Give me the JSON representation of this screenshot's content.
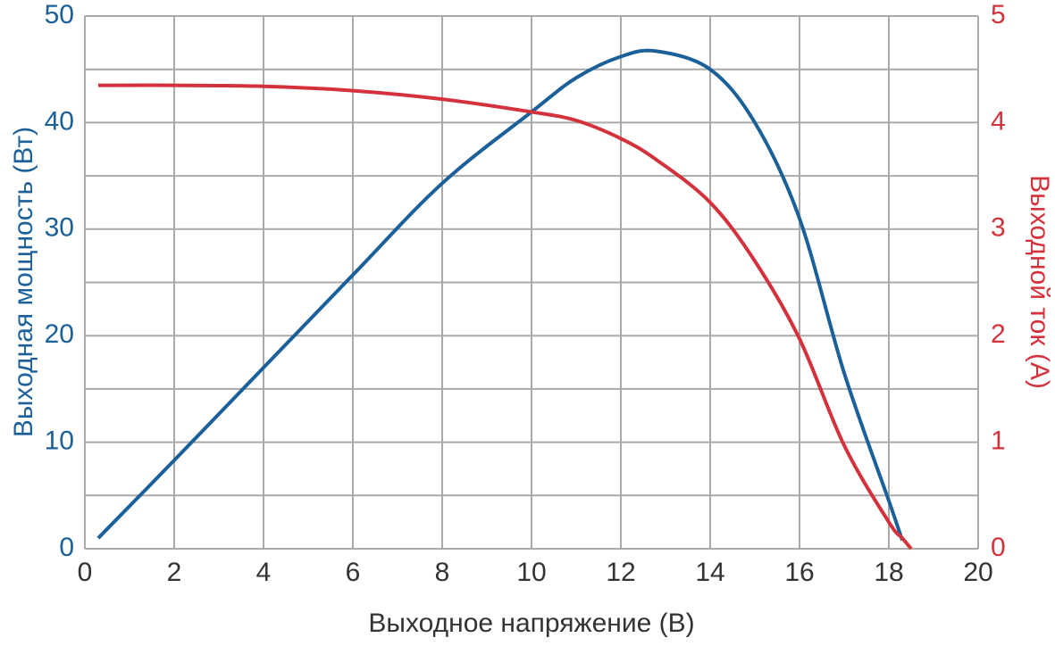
{
  "chart_data": {
    "type": "line",
    "x_label": "Выходное напряжение (В)",
    "y_label": "Выходная мощность (Вт)",
    "y2_label": "Выходной ток (А)",
    "x": [
      0.3,
      2,
      4,
      6,
      8,
      10,
      11,
      12,
      12.8,
      14,
      15,
      16,
      17,
      18,
      18.3,
      18.5
    ],
    "series": [
      {
        "name": "Выходная мощность",
        "color": "#1b6099",
        "axis": "y",
        "values": [
          1,
          8.3,
          17,
          25.7,
          34.3,
          41,
          44.2,
          46.2,
          46.7,
          45,
          40,
          31,
          16.5,
          4.5,
          0.8,
          null
        ]
      },
      {
        "name": "Выходной ток",
        "color": "#d3323c",
        "axis": "y2",
        "values": [
          4.35,
          4.35,
          4.34,
          4.3,
          4.22,
          4.1,
          4.02,
          3.85,
          3.65,
          3.25,
          2.7,
          1.97,
          0.97,
          0.25,
          0.1,
          0
        ]
      }
    ],
    "xlim": [
      0,
      20
    ],
    "xticks": [
      0,
      2,
      4,
      6,
      8,
      10,
      12,
      14,
      16,
      18,
      20
    ],
    "ylim": [
      0,
      50
    ],
    "yticks": [
      0,
      10,
      20,
      30,
      40,
      50
    ],
    "y_minor_ticks": [
      5,
      15,
      25,
      35,
      45
    ],
    "y2lim": [
      0,
      5
    ],
    "y2ticks": [
      0,
      1,
      2,
      3,
      4,
      5
    ],
    "grid": true,
    "y_color": "#1b6099",
    "y2_color": "#d3323c",
    "x_color": "#333333"
  }
}
